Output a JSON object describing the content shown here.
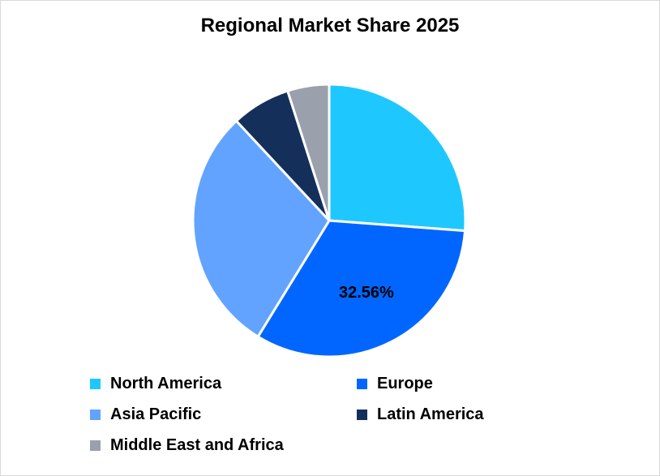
{
  "chart_data": {
    "type": "pie",
    "title": "Regional Market Share 2025",
    "legend_position": "bottom",
    "series": [
      {
        "name": "North America",
        "value": 26.2,
        "color": "#1ec8ff"
      },
      {
        "name": "Europe",
        "value": 32.56,
        "color": "#0066ff",
        "data_label": "32.56%"
      },
      {
        "name": "Asia Pacific",
        "value": 29.3,
        "color": "#62a3ff"
      },
      {
        "name": "Latin America",
        "value": 7.0,
        "color": "#14305a"
      },
      {
        "name": "Middle East and Africa",
        "value": 4.94,
        "color": "#9aa0ac"
      }
    ]
  }
}
